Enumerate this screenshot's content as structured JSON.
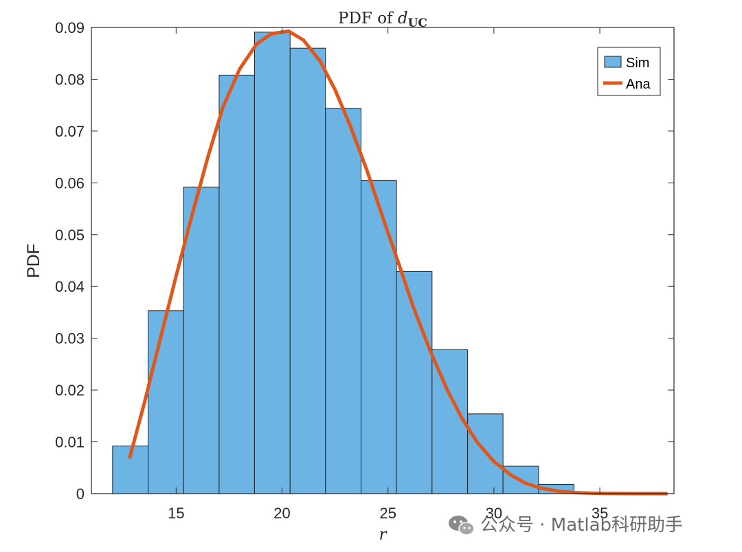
{
  "chart_data": {
    "type": "bar",
    "title": "PDF of ",
    "title_math": "d",
    "title_subscript": "UC",
    "xlabel": "r",
    "ylabel": "PDF",
    "xlim": [
      11,
      38.5
    ],
    "ylim": [
      0,
      0.09
    ],
    "xticks": [
      15,
      20,
      25,
      30,
      35
    ],
    "xtick_labels": [
      "15",
      "20",
      "25",
      "30",
      "35"
    ],
    "yticks": [
      0,
      0.01,
      0.02,
      0.03,
      0.04,
      0.05,
      0.06,
      0.07,
      0.08,
      0.09
    ],
    "ytick_labels": [
      "0",
      "0.01",
      "0.02",
      "0.03",
      "0.04",
      "0.05",
      "0.06",
      "0.07",
      "0.08",
      "0.09"
    ],
    "grid": false,
    "legend_position": "top-right",
    "histogram": {
      "name": "Sim",
      "color": "#6cb4e4",
      "edge_color": "#1f1f1f",
      "bin_edges": [
        12.0,
        13.68,
        15.35,
        17.03,
        18.7,
        20.38,
        22.05,
        23.73,
        25.4,
        27.08,
        28.76,
        30.43,
        32.11,
        33.78
      ],
      "values": [
        0.0092,
        0.0353,
        0.0592,
        0.0808,
        0.0891,
        0.086,
        0.0744,
        0.0605,
        0.0429,
        0.0278,
        0.0154,
        0.0053,
        0.0018
      ]
    },
    "curve": {
      "name": "Ana",
      "color": "#e0571c",
      "x": [
        12.8,
        13.5,
        14.2,
        15.0,
        15.8,
        16.5,
        17.2,
        18.0,
        18.8,
        19.5,
        20.3,
        21.0,
        21.8,
        22.5,
        23.2,
        24.0,
        24.8,
        25.5,
        26.2,
        27.0,
        27.8,
        28.5,
        29.2,
        30.0,
        30.8,
        31.5,
        32.2,
        33.0,
        33.8,
        34.5,
        35.2,
        36.0,
        36.8,
        37.5,
        38.2
      ],
      "y": [
        0.0068,
        0.0175,
        0.029,
        0.042,
        0.0545,
        0.065,
        0.0745,
        0.082,
        0.0868,
        0.0888,
        0.0893,
        0.0876,
        0.0835,
        0.078,
        0.0712,
        0.0625,
        0.0528,
        0.0445,
        0.036,
        0.0275,
        0.02,
        0.0145,
        0.01,
        0.0062,
        0.0036,
        0.002,
        0.0011,
        0.0005,
        0.0002,
        0.0001,
        4e-05,
        1e-05,
        0.0,
        0.0,
        0.0
      ]
    }
  },
  "watermark": {
    "icon": "wechat-icon",
    "text": "公众号 · Matlab科研助手"
  }
}
